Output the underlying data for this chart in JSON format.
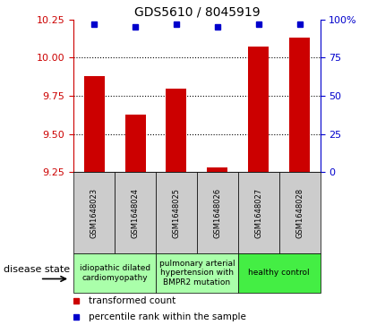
{
  "title": "GDS5610 / 8045919",
  "samples": [
    "GSM1648023",
    "GSM1648024",
    "GSM1648025",
    "GSM1648026",
    "GSM1648027",
    "GSM1648028"
  ],
  "transformed_count": [
    9.88,
    9.63,
    9.8,
    9.28,
    10.07,
    10.13
  ],
  "percentile_rank": [
    97,
    95,
    97,
    95,
    97,
    97
  ],
  "ylim_left": [
    9.25,
    10.25
  ],
  "ylim_right": [
    0,
    100
  ],
  "yticks_left": [
    9.25,
    9.5,
    9.75,
    10.0,
    10.25
  ],
  "yticks_right": [
    0,
    25,
    50,
    75,
    100
  ],
  "ytick_right_labels": [
    "0",
    "25",
    "50",
    "75",
    "100%"
  ],
  "gridlines_at": [
    9.5,
    9.75,
    10.0
  ],
  "bar_color": "#cc0000",
  "dot_color": "#0000cc",
  "background_color": "#ffffff",
  "sample_box_color": "#cccccc",
  "disease_groups": [
    {
      "label": "idiopathic dilated\ncardiomyopathy",
      "start": 0,
      "end": 2,
      "color": "#aaffaa"
    },
    {
      "label": "pulmonary arterial\nhypertension with\nBMPR2 mutation",
      "start": 2,
      "end": 4,
      "color": "#aaffaa"
    },
    {
      "label": "healthy control",
      "start": 4,
      "end": 6,
      "color": "#44ee44"
    }
  ],
  "legend_items": [
    {
      "label": "transformed count",
      "color": "#cc0000"
    },
    {
      "label": "percentile rank within the sample",
      "color": "#0000cc"
    }
  ],
  "disease_state_label": "disease state",
  "left_tick_color": "#cc0000",
  "right_tick_color": "#0000cc",
  "title_fontsize": 10,
  "tick_fontsize": 8,
  "sample_fontsize": 6,
  "disease_fontsize": 6.5,
  "legend_fontsize": 7.5,
  "bar_width": 0.5,
  "dot_size": 4
}
